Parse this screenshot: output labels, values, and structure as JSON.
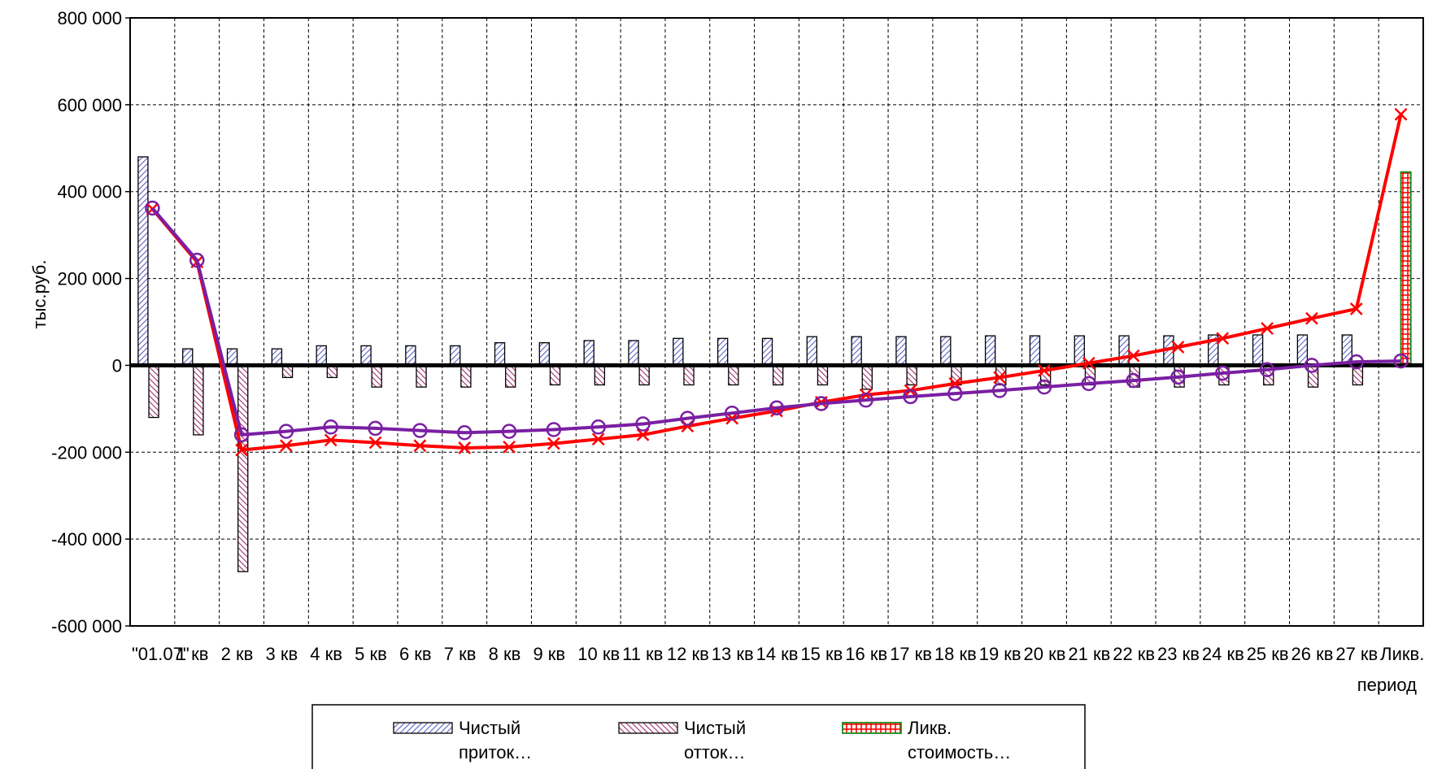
{
  "chart_data": {
    "type": "bar",
    "title": "",
    "ylabel": "тыс.руб.",
    "xlabel": "период",
    "ylim": [
      -600000,
      800000
    ],
    "yticks": [
      -600000,
      -400000,
      -200000,
      0,
      200000,
      400000,
      600000,
      800000
    ],
    "ytick_labels": [
      "-600 000",
      "-400 000",
      "-200 000",
      "0",
      "200 000",
      "400 000",
      "600 000",
      "800 000"
    ],
    "grid": true,
    "legend_position": "bottom",
    "categories": [
      "\"01.07\"",
      "1 кв",
      "2 кв",
      "3 кв",
      "4 кв",
      "5 кв",
      "6 кв",
      "7 кв",
      "8 кв",
      "9 кв",
      "10 кв",
      "11 кв",
      "12 кв",
      "13 кв",
      "14 кв",
      "15 кв",
      "16 кв",
      "17 кв",
      "18 кв",
      "19 кв",
      "20 кв",
      "21 кв",
      "22 кв",
      "23 кв",
      "24 кв",
      "25 кв",
      "26 кв",
      "27 кв",
      "Ликв."
    ],
    "series": [
      {
        "name": "Чистый приток…",
        "kind": "bar",
        "color": "#5b5fc7",
        "pattern": "diagonal-blue",
        "values": [
          480000,
          38000,
          38000,
          38000,
          45000,
          45000,
          45000,
          45000,
          52000,
          52000,
          57000,
          57000,
          62000,
          62000,
          62000,
          66000,
          66000,
          66000,
          66000,
          68000,
          68000,
          68000,
          68000,
          68000,
          70000,
          70000,
          70000,
          70000,
          0
        ]
      },
      {
        "name": "Чистый отток…",
        "kind": "bar",
        "color": "#8b2252",
        "pattern": "diagonal-purple",
        "values": [
          -120000,
          -160000,
          -475000,
          -28000,
          -28000,
          -50000,
          -50000,
          -50000,
          -50000,
          -45000,
          -45000,
          -45000,
          -45000,
          -45000,
          -45000,
          -45000,
          -55000,
          -45000,
          -45000,
          -45000,
          -45000,
          -45000,
          -50000,
          -50000,
          -45000,
          -45000,
          -50000,
          -45000,
          0
        ]
      },
      {
        "name": "Ликв. стоимость…",
        "kind": "bar",
        "color": "#1a8a1a",
        "pattern": "red-cross",
        "values": [
          0,
          0,
          0,
          0,
          0,
          0,
          0,
          0,
          0,
          0,
          0,
          0,
          0,
          0,
          0,
          0,
          0,
          0,
          0,
          0,
          0,
          0,
          0,
          0,
          0,
          0,
          0,
          0,
          445000
        ]
      },
      {
        "kind": "line",
        "color": "#ff0000",
        "marker": "x",
        "values": [
          360000,
          238000,
          -195000,
          -185000,
          -172000,
          -178000,
          -185000,
          -190000,
          -188000,
          -180000,
          -170000,
          -160000,
          -140000,
          -122000,
          -105000,
          -85000,
          -68000,
          -58000,
          -42000,
          -28000,
          -12000,
          5000,
          22000,
          42000,
          62000,
          85000,
          108000,
          130000,
          578000
        ]
      },
      {
        "kind": "line",
        "color": "#7a1fa2",
        "marker": "circle",
        "values": [
          362000,
          242000,
          -160000,
          -152000,
          -142000,
          -145000,
          -150000,
          -155000,
          -152000,
          -148000,
          -142000,
          -135000,
          -122000,
          -110000,
          -98000,
          -88000,
          -80000,
          -72000,
          -65000,
          -58000,
          -50000,
          -42000,
          -35000,
          -27000,
          -18000,
          -10000,
          0,
          8000,
          10000
        ]
      }
    ]
  },
  "legend": {
    "items": [
      {
        "line1": "Чистый",
        "line2": "приток…"
      },
      {
        "line1": "Чистый",
        "line2": "отток…"
      },
      {
        "line1": "Ликв.",
        "line2": "стоимость…"
      }
    ]
  }
}
